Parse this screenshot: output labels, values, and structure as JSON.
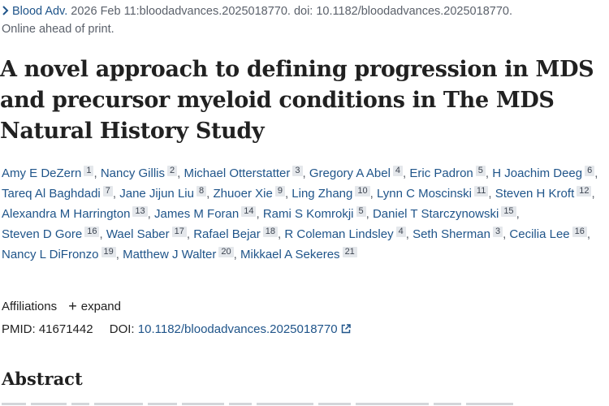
{
  "citation": {
    "journal": "Blood Adv.",
    "details": " 2026 Feb 11:bloodadvances.2025018770. doi: 10.1182/bloodadvances.2025018770.",
    "status": "Online ahead of print."
  },
  "article": {
    "title": "A novel approach to defining progression in MDS and precursor myeloid conditions in The MDS Natural History Study"
  },
  "authors": [
    {
      "name": "Amy E DeZern",
      "aff": "1"
    },
    {
      "name": "Nancy Gillis",
      "aff": "2"
    },
    {
      "name": "Michael Otterstatter",
      "aff": "3"
    },
    {
      "name": "Gregory A Abel",
      "aff": "4"
    },
    {
      "name": "Eric Padron",
      "aff": "5"
    },
    {
      "name": "H Joachim Deeg",
      "aff": "6"
    },
    {
      "name": "Tareq Al Baghdadi",
      "aff": "7"
    },
    {
      "name": "Jane Jijun Liu",
      "aff": "8"
    },
    {
      "name": "Zhuoer Xie",
      "aff": "9"
    },
    {
      "name": "Ling Zhang",
      "aff": "10"
    },
    {
      "name": "Lynn C Moscinski",
      "aff": "11"
    },
    {
      "name": "Steven H Kroft",
      "aff": "12"
    },
    {
      "name": "Alexandra M Harrington",
      "aff": "13"
    },
    {
      "name": "James M Foran",
      "aff": "14"
    },
    {
      "name": "Rami S Komrokji",
      "aff": "5"
    },
    {
      "name": "Daniel T Starczynowski",
      "aff": "15"
    },
    {
      "name": "Steven D Gore",
      "aff": "16"
    },
    {
      "name": "Wael Saber",
      "aff": "17"
    },
    {
      "name": "Rafael Bejar",
      "aff": "18"
    },
    {
      "name": "R Coleman Lindsley",
      "aff": "4"
    },
    {
      "name": "Seth Sherman",
      "aff": "3"
    },
    {
      "name": "Cecilia Lee",
      "aff": "16"
    },
    {
      "name": "Nancy L DiFronzo",
      "aff": "19"
    },
    {
      "name": "Matthew J Walter",
      "aff": "20"
    },
    {
      "name": "Mikkael A Sekeres",
      "aff": "21"
    }
  ],
  "affiliations": {
    "label": "Affiliations",
    "plus": "+",
    "expand_label": "expand"
  },
  "ids": {
    "pmid_label": "PMID:",
    "pmid": "41671442",
    "doi_label": "DOI:",
    "doi": "10.1182/bloodadvances.2025018770"
  },
  "abstract": {
    "heading": "Abstract"
  },
  "icons": {
    "breadcrumb": "chevron-right-icon",
    "external": "external-link-icon",
    "expand": "plus-icon"
  },
  "colors": {
    "link": "#20558a",
    "text": "#212121",
    "muted": "#5b616b",
    "badge_bg": "#e4e7eb"
  }
}
